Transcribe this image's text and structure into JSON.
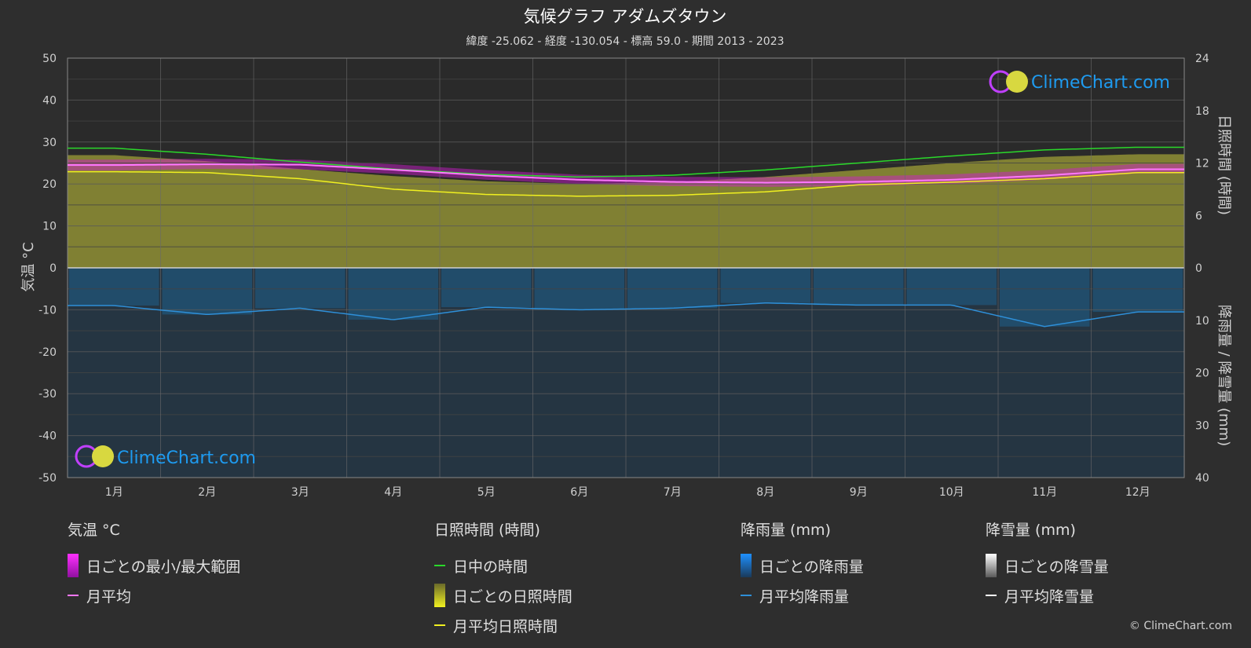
{
  "title": "気候グラフ アダムズタウン",
  "subtitle": "緯度 -25.062 - 経度 -130.054 - 標高 59.0 - 期間 2013 - 2023",
  "logo_text": "ClimeChart.com",
  "copyright": "© ClimeChart.com",
  "colors": {
    "background": "#2e2e2e",
    "temp_range": "#d418d4",
    "temp_mean": "#ff77ff",
    "daylight": "#2ad82a",
    "sunshine_fill": "#8f8f35",
    "sunshine_mean": "#f0f020",
    "rain_fill": "#1f5e8c",
    "rain_mean": "#2e8fd8",
    "snow_mean": "#ffffff"
  },
  "legend": {
    "temperature": {
      "heading": "気温 °C",
      "range_label": "日ごとの最小/最大範囲",
      "mean_label": "月平均"
    },
    "sunshine": {
      "heading": "日照時間 (時間)",
      "daylight_label": "日中の時間",
      "daily_label": "日ごとの日照時間",
      "mean_label": "月平均日照時間"
    },
    "rain": {
      "heading": "降雨量 (mm)",
      "daily_label": "日ごとの降雨量",
      "mean_label": "月平均降雨量"
    },
    "snow": {
      "heading": "降雪量 (mm)",
      "daily_label": "日ごとの降雪量",
      "mean_label": "月平均降雪量"
    }
  },
  "chart_data": {
    "type": "line",
    "categories": [
      "1月",
      "2月",
      "3月",
      "4月",
      "5月",
      "6月",
      "7月",
      "8月",
      "9月",
      "10月",
      "11月",
      "12月"
    ],
    "y_left": {
      "label": "気温 °C",
      "range": [
        -50,
        50
      ],
      "ticks": [
        50,
        40,
        30,
        20,
        10,
        0,
        -10,
        -20,
        -30,
        -40,
        -50
      ]
    },
    "y_right_top": {
      "label": "日照時間 (時間)",
      "range": [
        0,
        24
      ],
      "ticks": [
        24,
        18,
        12,
        6,
        0
      ]
    },
    "y_right_bottom": {
      "label": "降雨量 / 降雪量 (mm)",
      "range": [
        0,
        40
      ],
      "ticks": [
        10,
        20,
        30,
        40
      ]
    },
    "grid": true,
    "series": [
      {
        "name": "日中の時間",
        "unit": "hours",
        "values": [
          13.7,
          13.0,
          12.1,
          11.3,
          10.7,
          10.4,
          10.6,
          11.2,
          12.0,
          12.8,
          13.5,
          13.8
        ]
      },
      {
        "name": "月平均日照時間",
        "unit": "hours",
        "values": [
          11.0,
          10.9,
          10.2,
          9.0,
          8.4,
          8.2,
          8.3,
          8.7,
          9.5,
          9.8,
          10.2,
          10.9
        ]
      },
      {
        "name": "月平均",
        "unit": "°C",
        "values": [
          24.5,
          24.7,
          24.6,
          23.4,
          22.0,
          21.0,
          20.5,
          20.3,
          20.5,
          21.0,
          22.0,
          23.5
        ]
      },
      {
        "name": "日ごとの最小/最大範囲",
        "unit": "°C",
        "min": [
          23.2,
          23.6,
          23.5,
          22.4,
          21.0,
          20.0,
          19.5,
          19.3,
          19.5,
          20.0,
          21.0,
          22.5
        ],
        "max": [
          25.8,
          26.0,
          25.8,
          24.7,
          23.3,
          22.2,
          21.7,
          21.6,
          21.8,
          22.3,
          23.3,
          24.8
        ]
      },
      {
        "name": "月平均降雨量",
        "unit": "mm",
        "values": [
          7.2,
          8.9,
          7.7,
          9.9,
          7.5,
          8.0,
          7.7,
          6.7,
          7.1,
          7.1,
          11.2,
          8.4
        ]
      },
      {
        "name": "月平均降雪量",
        "unit": "mm",
        "values": [
          0,
          0,
          0,
          0,
          0,
          0,
          0,
          0,
          0,
          0,
          0,
          0
        ]
      }
    ]
  }
}
